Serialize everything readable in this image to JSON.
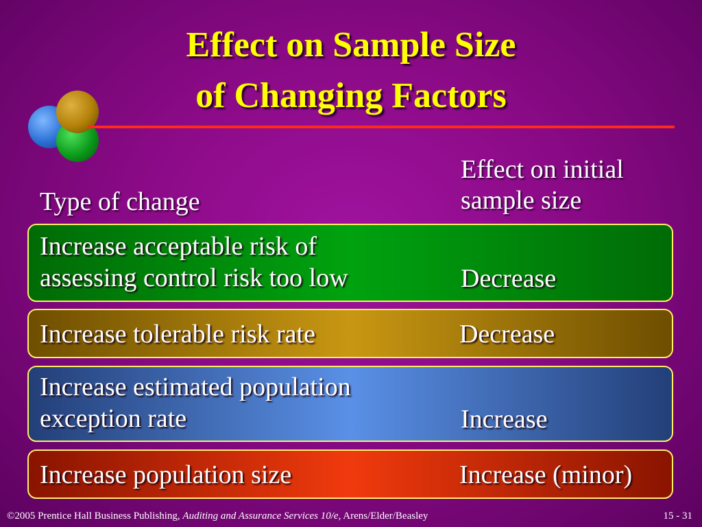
{
  "slide": {
    "title_line1": "Effect on Sample Size",
    "title_line2": "of Changing Factors",
    "colors": {
      "title": "#ffff00",
      "background": "#8a0a86",
      "rule": "#ff2a1a"
    }
  },
  "table": {
    "header_type": "Type of change",
    "header_effect_line1": "Effect on initial",
    "header_effect_line2": "sample size",
    "rows": [
      {
        "change_line1": "Increase acceptable risk of",
        "change_line2": "assessing control risk too low",
        "effect": "Decrease",
        "color": "#00a20f"
      },
      {
        "change_line1": "Increase tolerable risk rate",
        "effect": "Decrease",
        "color": "#c89712"
      },
      {
        "change_line1": "Increase estimated population",
        "change_line2": "exception rate",
        "effect": "Increase",
        "color": "#5a90e6"
      },
      {
        "change_line1": "Increase population size",
        "effect": "Increase (minor)",
        "color": "#f03a0d"
      }
    ]
  },
  "footer": {
    "copyright": "©2005 Prentice Hall Business Publishing,",
    "book": "Auditing and Assurance Services 10/e,",
    "authors": "Arens/Elder/Beasley",
    "page": "15 - 31"
  }
}
